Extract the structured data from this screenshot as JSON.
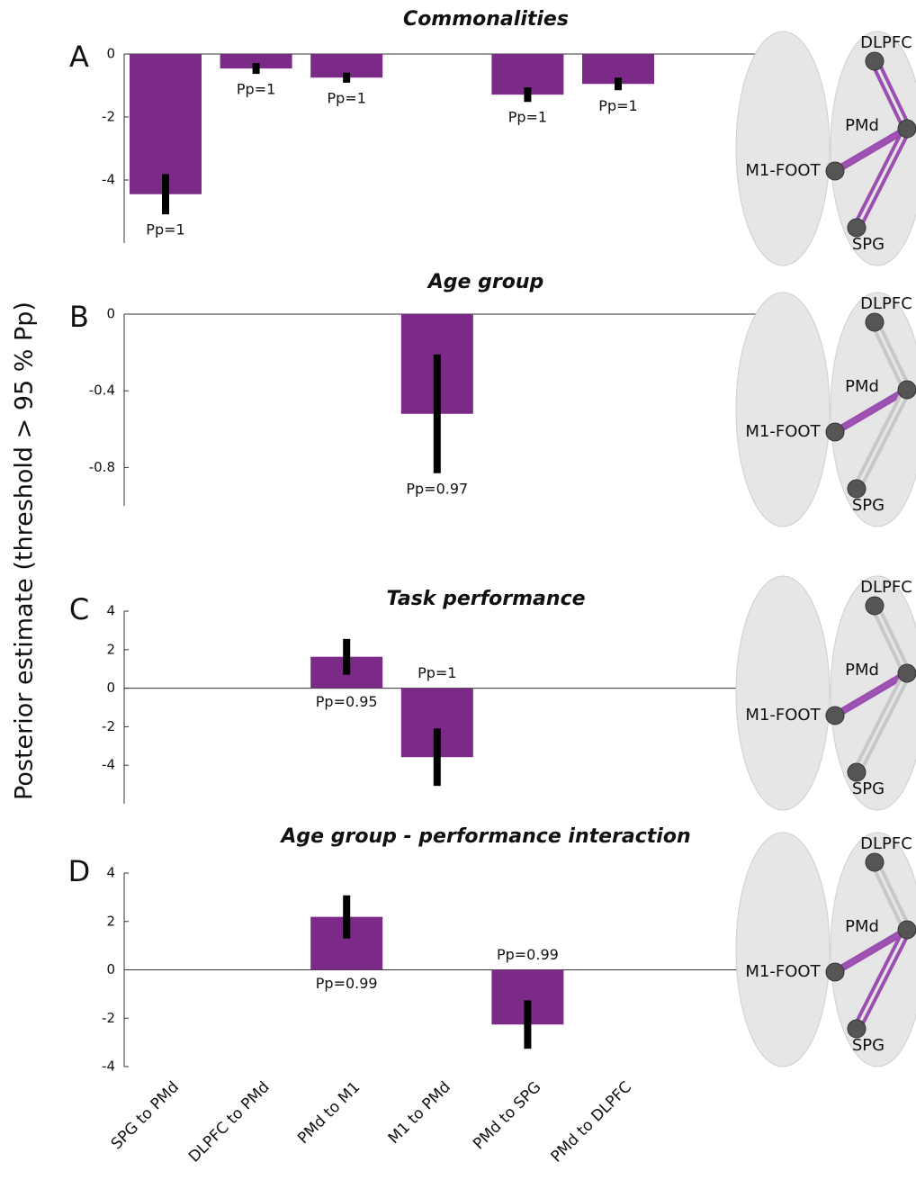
{
  "ylabel": "Posterior estimate (threshold > 95 % Pp)",
  "chart_data": [
    {
      "type": "bar",
      "panel": "A",
      "title": "Commonalities",
      "color": "#7b2a87",
      "values": [
        -4.45,
        -0.46,
        -0.75,
        null,
        -1.29,
        -0.95
      ],
      "errors": [
        0.64,
        0.17,
        0.16,
        null,
        0.23,
        0.2
      ],
      "pp_labels": [
        "Pp=1",
        "Pp=1",
        "Pp=1",
        null,
        "Pp=1",
        "Pp=1"
      ],
      "ylim": [
        -6,
        0
      ],
      "yticks": [
        0,
        -2,
        -4
      ],
      "nodes": [
        "DLPFC",
        "PMd",
        "M1-FOOT",
        "SPG"
      ]
    },
    {
      "type": "bar",
      "panel": "B",
      "title": "Age group",
      "color": "#7b2a87",
      "values": [
        null,
        null,
        null,
        -0.52,
        null,
        null
      ],
      "errors": [
        null,
        null,
        null,
        0.31,
        null,
        null
      ],
      "pp_labels": [
        null,
        null,
        null,
        "Pp=0.97",
        null,
        null
      ],
      "ylim": [
        -1,
        0
      ],
      "yticks": [
        0,
        -0.4,
        -0.8
      ],
      "nodes": [
        "DLPFC",
        "PMd",
        "M1-FOOT",
        "SPG"
      ]
    },
    {
      "type": "bar",
      "panel": "C",
      "title": "Task performance",
      "color": "#7b2a87",
      "values": [
        null,
        null,
        1.63,
        -3.58,
        null,
        null
      ],
      "errors": [
        null,
        null,
        0.93,
        1.49,
        null,
        null
      ],
      "pp_labels": [
        null,
        null,
        "Pp=0.95",
        "Pp=1",
        null,
        null
      ],
      "ylim": [
        -6,
        4
      ],
      "yticks": [
        4,
        2,
        0,
        -2,
        -4
      ],
      "nodes": [
        "DLPFC",
        "PMd",
        "M1-FOOT",
        "SPG"
      ]
    },
    {
      "type": "bar",
      "panel": "D",
      "title": "Age group - performance interaction",
      "color": "#7b2a87",
      "categories": [
        "SPG to PMd",
        "DLPFC to PMd",
        "PMd to M1",
        "M1 to PMd",
        "PMd to SPG",
        "PMd to DLPFC"
      ],
      "values": [
        null,
        null,
        2.19,
        null,
        -2.26,
        null
      ],
      "errors": [
        null,
        null,
        0.89,
        null,
        1.0,
        null
      ],
      "pp_labels": [
        null,
        null,
        "Pp=0.99",
        null,
        "Pp=0.99",
        null
      ],
      "ylim": [
        -4,
        4
      ],
      "yticks": [
        4,
        2,
        0,
        -2,
        -4
      ],
      "nodes": [
        "DLPFC",
        "PMd",
        "M1-FOOT",
        "SPG"
      ]
    }
  ]
}
